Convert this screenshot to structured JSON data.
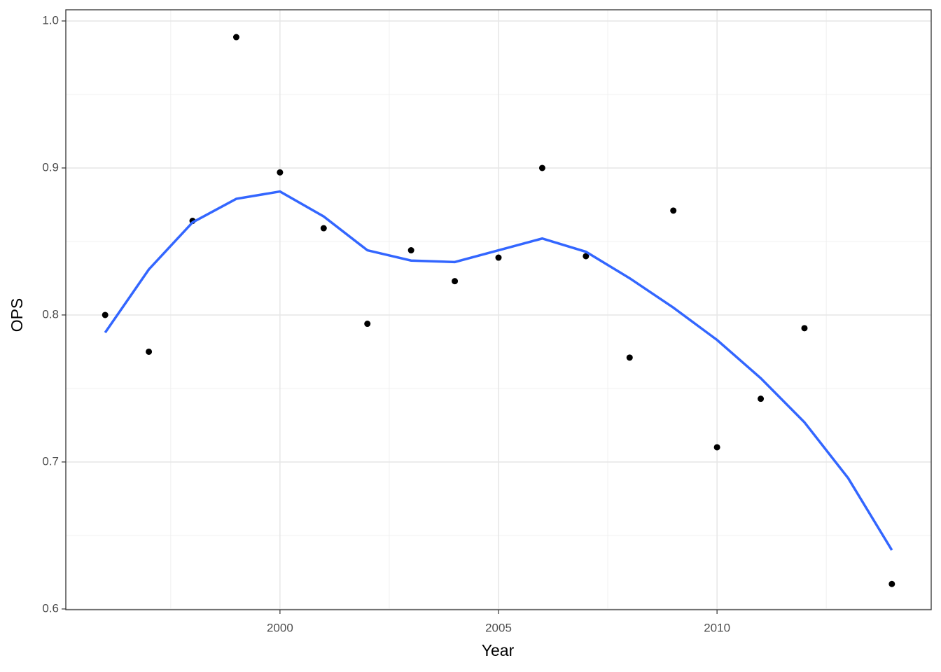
{
  "chart_data": {
    "type": "scatter",
    "x_label": "Year",
    "y_label": "OPS",
    "xlim": [
      1995.1,
      2014.9
    ],
    "ylim": [
      0.5995,
      1.0076
    ],
    "xticks": [
      2000,
      2005,
      2010
    ],
    "yticks": [
      0.6,
      0.7,
      0.8,
      0.9,
      {
        "value": 1,
        "label": "1.0"
      }
    ],
    "grid": true,
    "series": [
      {
        "mode": "points",
        "color": "#000000",
        "x": [
          1996,
          1997,
          1998,
          1999,
          2000,
          2001,
          2002,
          2003,
          2004,
          2005,
          2006,
          2007,
          2008,
          2009,
          2010,
          2011,
          2012,
          2014
        ],
        "values": [
          0.8,
          0.775,
          0.864,
          0.989,
          0.897,
          0.859,
          0.794,
          0.844,
          0.823,
          0.839,
          0.9,
          0.84,
          0.771,
          0.871,
          0.71,
          0.743,
          0.791,
          0.617
        ]
      },
      {
        "mode": "line",
        "color": "#3366FF",
        "x": [
          1996,
          1997,
          1998,
          1999,
          2000,
          2001,
          2002,
          2003,
          2004,
          2005,
          2006,
          2007,
          2008,
          2009,
          2010,
          2011,
          2012,
          2013,
          2014
        ],
        "values": [
          0.788,
          0.831,
          0.863,
          0.879,
          0.884,
          0.867,
          0.844,
          0.837,
          0.836,
          0.844,
          0.852,
          0.843,
          0.825,
          0.805,
          0.783,
          0.757,
          0.727,
          0.689,
          0.64
        ]
      }
    ]
  }
}
